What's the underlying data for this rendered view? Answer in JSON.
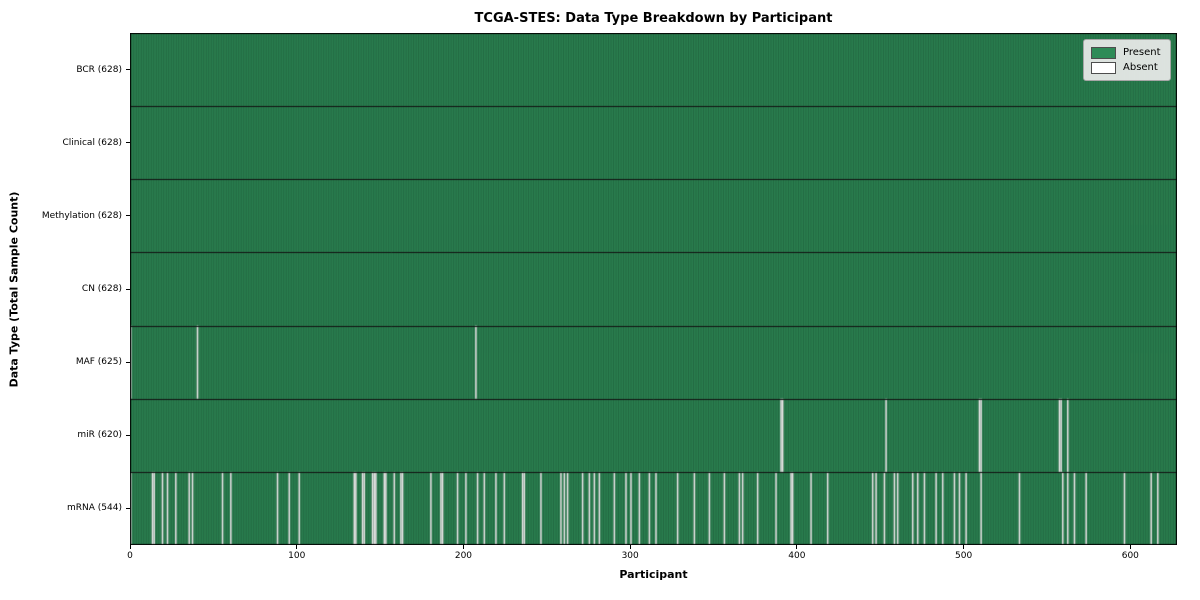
{
  "chart_data": {
    "type": "heatmap",
    "title": "TCGA-STES: Data Type Breakdown by Participant",
    "xlabel": "Participant",
    "ylabel": "Data Type (Total Sample Count)",
    "n_participants": 628,
    "x_ticks": [
      0,
      100,
      200,
      300,
      400,
      500,
      600
    ],
    "legend": {
      "present_label": "Present",
      "absent_label": "Absent",
      "position": "upper right"
    },
    "colors": {
      "present": "#2E8B57",
      "absent": "#FFFFFF",
      "bar_edge": "rgba(0,0,0,0.5)",
      "separator": "#111111",
      "border": "#000000"
    },
    "rows": [
      {
        "label": "BCR (628)",
        "name": "BCR",
        "count": 628,
        "absent": []
      },
      {
        "label": "Clinical (628)",
        "name": "Clinical",
        "count": 628,
        "absent": []
      },
      {
        "label": "Methylation (628)",
        "name": "Methylation",
        "count": 628,
        "absent": []
      },
      {
        "label": "CN (628)",
        "name": "CN",
        "count": 628,
        "absent": []
      },
      {
        "label": "MAF (625)",
        "name": "MAF",
        "count": 625,
        "absent": [
          0,
          40,
          207
        ]
      },
      {
        "label": "miR (620)",
        "name": "miR",
        "count": 620,
        "absent": [
          390,
          391,
          453,
          509,
          510,
          557,
          558,
          562
        ]
      },
      {
        "label": "mRNA (544)",
        "name": "mRNA",
        "count": 544,
        "absent": [
          0,
          13,
          14,
          19,
          22,
          27,
          35,
          37,
          55,
          60,
          88,
          95,
          101,
          134,
          135,
          139,
          140,
          145,
          146,
          147,
          152,
          153,
          158,
          162,
          163,
          180,
          186,
          187,
          196,
          201,
          208,
          212,
          219,
          224,
          235,
          236,
          246,
          258,
          260,
          262,
          271,
          275,
          278,
          281,
          290,
          297,
          300,
          305,
          311,
          315,
          328,
          338,
          347,
          356,
          365,
          367,
          376,
          387,
          396,
          397,
          408,
          418,
          445,
          447,
          452,
          458,
          460,
          469,
          472,
          476,
          483,
          487,
          494,
          497,
          501,
          510,
          533,
          559,
          562,
          566,
          573,
          596,
          612,
          616
        ]
      }
    ]
  }
}
